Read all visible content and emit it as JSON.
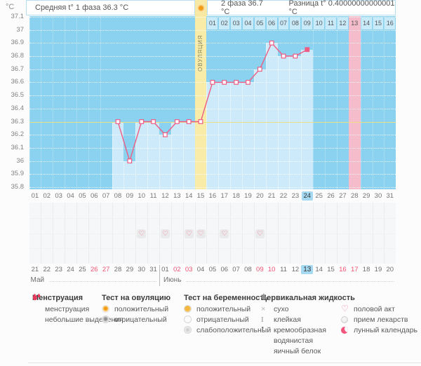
{
  "header": {
    "unit_label": "°C",
    "avg_phase1": "Средняя t° 1 фаза 36.3 °C",
    "phase2": "2 фаза 36.7 °C",
    "difference": "Разница t° 0.40000000000001 °C",
    "ovulation_test_icon": "ovulation-test-positive"
  },
  "chart_data": {
    "type": "line",
    "title": "Basal body temperature cycle chart",
    "unit": "°C",
    "y_ticks": [
      "37.1",
      "37",
      "36.9",
      "36.8",
      "36.7",
      "36.6",
      "36.5",
      "36.4",
      "36.3",
      "36.2",
      "36.1",
      "36",
      "35.9",
      "35.8"
    ],
    "y_range": [
      35.8,
      37.1
    ],
    "coverline": 36.3,
    "cycle_length_shown": 31,
    "x_labels": [
      "01",
      "02",
      "03",
      "04",
      "05",
      "06",
      "07",
      "08",
      "09",
      "10",
      "11",
      "12",
      "13",
      "14",
      "15",
      "16",
      "17",
      "18",
      "19",
      "20",
      "21",
      "22",
      "23",
      "24",
      "25",
      "26",
      "27",
      "28",
      "29",
      "30",
      "31"
    ],
    "series": [
      {
        "name": "температура",
        "points": [
          {
            "day": 8,
            "value": 36.3
          },
          {
            "day": 9,
            "value": 36.0
          },
          {
            "day": 10,
            "value": 36.3
          },
          {
            "day": 11,
            "value": 36.3
          },
          {
            "day": 12,
            "value": 36.2
          },
          {
            "day": 13,
            "value": 36.3
          },
          {
            "day": 14,
            "value": 36.3
          },
          {
            "day": 15,
            "value": 36.3
          },
          {
            "day": 16,
            "value": 36.6
          },
          {
            "day": 17,
            "value": 36.6
          },
          {
            "day": 18,
            "value": 36.6
          },
          {
            "day": 19,
            "value": 36.6
          },
          {
            "day": 20,
            "value": 36.7
          },
          {
            "day": 21,
            "value": 36.9
          },
          {
            "day": 22,
            "value": 36.8
          },
          {
            "day": 23,
            "value": 36.8
          },
          {
            "day": 24,
            "value": 36.85
          }
        ]
      }
    ],
    "ovulation_day": 15,
    "ovulation_label": "ОВУЛЯЦИЯ",
    "expected_period_day": 28,
    "today_cycle_day": "24",
    "dpo_row": {
      "labels": [
        "01",
        "02",
        "03",
        "04",
        "05",
        "06",
        "07",
        "08",
        "09",
        "10",
        "11",
        "12",
        "13",
        "14",
        "15",
        "16"
      ],
      "pink": "13"
    },
    "intercourse_days": [
      10,
      12,
      14,
      15,
      17,
      20
    ],
    "calendar": {
      "may": {
        "name": "Май",
        "days": [
          "21",
          "22",
          "23",
          "24",
          "25",
          "26",
          "27",
          "28",
          "29",
          "30",
          "31"
        ],
        "red": [
          "26",
          "27"
        ]
      },
      "june": {
        "name": "Июнь",
        "days": [
          "01",
          "02",
          "03",
          "04",
          "05",
          "06",
          "07",
          "08",
          "09",
          "10",
          "11",
          "12",
          "13",
          "14",
          "15",
          "16",
          "17",
          "18",
          "19",
          "20"
        ],
        "red": [
          "02",
          "03",
          "09",
          "10",
          "16",
          "17"
        ],
        "today": "13"
      }
    },
    "grid": "dotted-horizontal",
    "legend_position": "bottom"
  },
  "legend": {
    "groups": [
      {
        "title": "Менструация",
        "items": [
          {
            "icon": "drops",
            "label": "менструация"
          },
          {
            "icon": "small-drop",
            "label": "небольшие выделения"
          }
        ]
      },
      {
        "title": "Тест на овуляцию",
        "items": [
          {
            "icon": "ovu-pos",
            "label": "положительный"
          },
          {
            "icon": "ovu-neg",
            "label": "отрицательный"
          }
        ]
      },
      {
        "title": "Тест на беременность",
        "items": [
          {
            "icon": "preg-pos",
            "label": "положительный"
          },
          {
            "icon": "preg-neg",
            "label": "отрицательный"
          },
          {
            "icon": "preg-weak",
            "label": "слабоположительный"
          }
        ]
      },
      {
        "title": "Цервикальная жидкость",
        "items": [
          {
            "icon": "dry",
            "label": "сухо"
          },
          {
            "icon": "sticky",
            "label": "клейкая"
          },
          {
            "icon": "creamy",
            "label": "кремообразная"
          },
          {
            "icon": "watery",
            "label": "водянистая"
          },
          {
            "icon": "eggwhite",
            "label": "яичный белок"
          }
        ]
      },
      {
        "title": "",
        "items": [
          {
            "icon": "heart",
            "label": "половой акт"
          },
          {
            "icon": "pills",
            "label": "прием лекарств"
          },
          {
            "icon": "moon",
            "label": "лунный календарь"
          }
        ]
      }
    ]
  },
  "colors": {
    "chart_bg": "#8bd2f0",
    "column_fill": "#cdeafa",
    "ovulation_band": "#f8eca8",
    "period_band": "#f5bccb",
    "line": "#ee5d84",
    "coverline": "#e9df85",
    "dpo_cell": "#c9eaf9",
    "today_badge": "#a5d9f2",
    "red_day": "#ef5273",
    "heart": "#f2719a",
    "drop_red": "#e8395c"
  }
}
